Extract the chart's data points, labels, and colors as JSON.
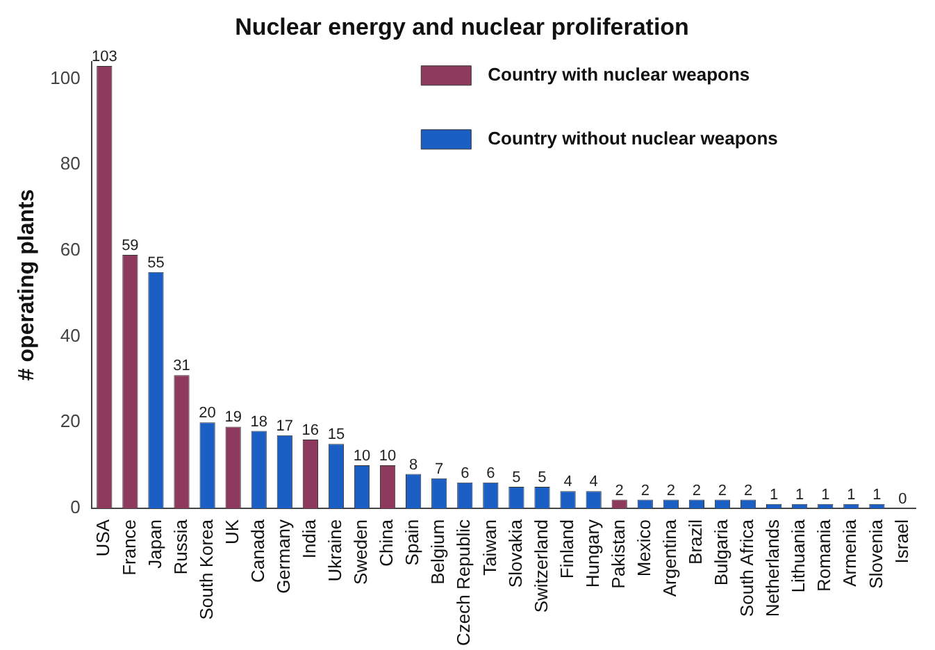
{
  "chart_data": {
    "type": "bar",
    "title": "Nuclear energy and nuclear proliferation",
    "ylabel": "# operating plants",
    "categories": [
      "USA",
      "France",
      "Japan",
      "Russia",
      "South Korea",
      "UK",
      "Canada",
      "Germany",
      "India",
      "Ukraine",
      "Sweden",
      "China",
      "Spain",
      "Belgium",
      "Czech Republic",
      "Taiwan",
      "Slovakia",
      "Switzerland",
      "Finland",
      "Hungary",
      "Pakistan",
      "Mexico",
      "Argentina",
      "Brazil",
      "Bulgaria",
      "South Africa",
      "Netherlands",
      "Lithuania",
      "Romania",
      "Armenia",
      "Slovenia",
      "Israel"
    ],
    "series": [
      {
        "name": "Country with nuclear weapons",
        "color": "#8e3a5e",
        "values": [
          103,
          59,
          null,
          31,
          null,
          19,
          null,
          null,
          16,
          null,
          null,
          10,
          null,
          null,
          null,
          null,
          null,
          null,
          null,
          null,
          2,
          null,
          null,
          null,
          null,
          null,
          null,
          null,
          null,
          null,
          null,
          0
        ]
      },
      {
        "name": "Country without nuclear weapons",
        "color": "#1c5fc4",
        "values": [
          null,
          null,
          55,
          null,
          20,
          null,
          18,
          17,
          null,
          15,
          10,
          null,
          8,
          7,
          6,
          6,
          5,
          5,
          4,
          4,
          null,
          2,
          2,
          2,
          2,
          2,
          1,
          1,
          1,
          1,
          1,
          null
        ]
      }
    ],
    "ylim": [
      0,
      104
    ],
    "yticks": [
      0,
      20,
      40,
      60,
      80,
      100
    ],
    "grid": false,
    "legend": "top right",
    "data_labels": true
  }
}
